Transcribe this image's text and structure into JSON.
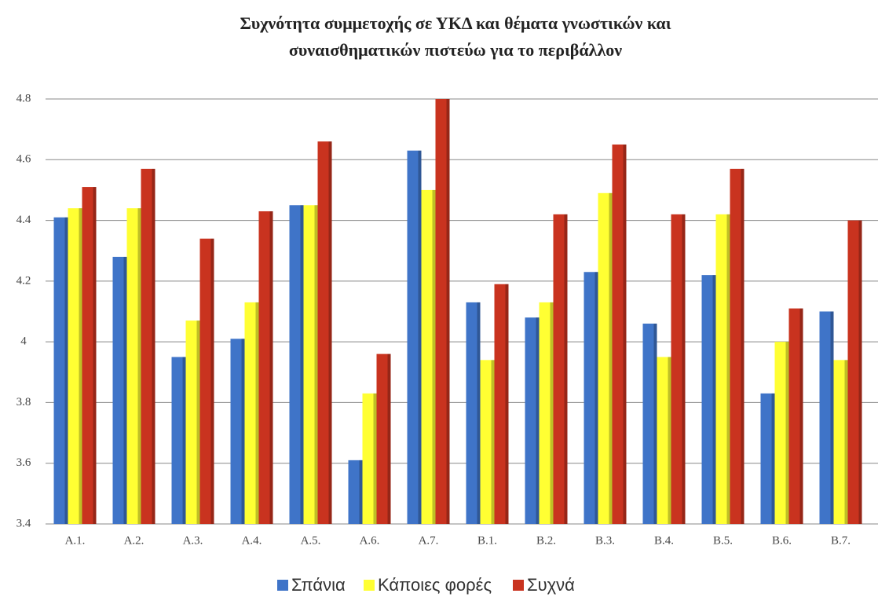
{
  "chart_data": {
    "type": "bar",
    "title": [
      "Συχνότητα συμμετοχής σε ΥΚΔ και θέματα γνωστικών και",
      "συναισθηματικών πιστεύω για το περιβάλλον"
    ],
    "categories": [
      "A.1.",
      "A.2.",
      "A.3.",
      "A.4.",
      "A.5.",
      "A.6.",
      "A.7.",
      "B.1.",
      "B.2.",
      "B.3.",
      "B.4.",
      "B.5.",
      "B.6.",
      "B.7."
    ],
    "series": [
      {
        "name": "Σπάνια",
        "color": "#3f74c8",
        "values": [
          4.41,
          4.28,
          3.95,
          4.01,
          4.45,
          3.61,
          4.63,
          4.13,
          4.08,
          4.23,
          4.06,
          4.22,
          3.83,
          4.1
        ]
      },
      {
        "name": "Κάποιες φορές",
        "color": "#ffff33",
        "values": [
          4.44,
          4.44,
          4.07,
          4.13,
          4.45,
          3.83,
          4.5,
          3.94,
          4.13,
          4.49,
          3.95,
          4.42,
          4.0,
          3.94
        ]
      },
      {
        "name": "Συχνά",
        "color": "#c9331f",
        "values": [
          4.51,
          4.57,
          4.34,
          4.43,
          4.66,
          3.96,
          4.8,
          4.19,
          4.42,
          4.65,
          4.42,
          4.57,
          4.11,
          4.4
        ]
      }
    ],
    "ylim": [
      3.4,
      4.8
    ],
    "yticks": [
      3.4,
      3.6,
      3.8,
      4,
      4.2,
      4.4,
      4.6,
      4.8
    ],
    "grid": true,
    "legend": "bottom"
  }
}
